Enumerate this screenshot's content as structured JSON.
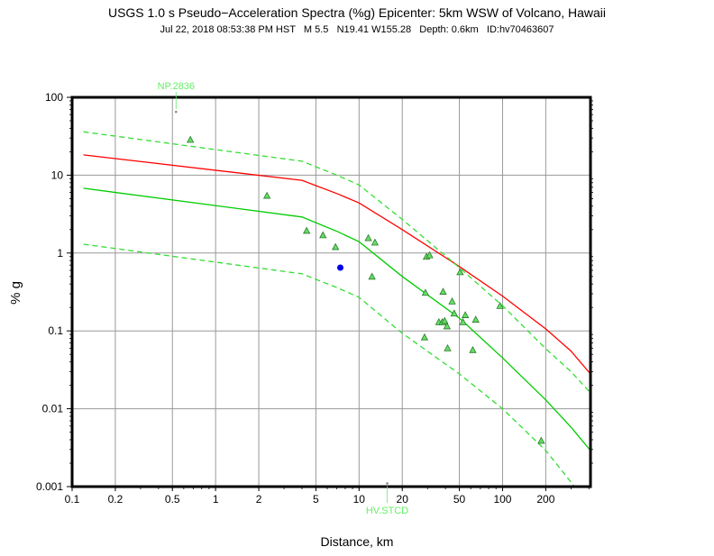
{
  "chart_data": {
    "type": "scatter",
    "title": "USGS 1.0 s Pseudo−Acceleration Spectra (%g) Epicenter: 5km WSW of Volcano, Hawaii",
    "subtitle": "Jul 22, 2018 08:53:38 PM HST   M 5.5   N19.41 W155.28   Depth: 0.6km   ID:hv70463607",
    "xlabel": "Distance, km",
    "ylabel": "% g",
    "xscale": "log",
    "yscale": "log",
    "xlim": [
      0.1,
      410
    ],
    "ylim": [
      0.001,
      100
    ],
    "grid": true,
    "x_ticks": [
      {
        "value": 0.1,
        "label": "0.1"
      },
      {
        "value": 0.2,
        "label": "0.2"
      },
      {
        "value": 0.5,
        "label": "0.5"
      },
      {
        "value": 1,
        "label": "1"
      },
      {
        "value": 2,
        "label": "2"
      },
      {
        "value": 5,
        "label": "5"
      },
      {
        "value": 10,
        "label": "10"
      },
      {
        "value": 20,
        "label": "20"
      },
      {
        "value": 50,
        "label": "50"
      },
      {
        "value": 100,
        "label": "100"
      },
      {
        "value": 200,
        "label": "200"
      }
    ],
    "y_ticks": [
      {
        "value": 100,
        "label": "100"
      },
      {
        "value": 10,
        "label": "10"
      },
      {
        "value": 1,
        "label": "1"
      },
      {
        "value": 0.1,
        "label": "0.1"
      },
      {
        "value": 0.01,
        "label": "0.01"
      },
      {
        "value": 0.001,
        "label": "0.001"
      }
    ],
    "curves": [
      {
        "name": "red-median",
        "color": "#ff0000",
        "dashed": false,
        "x": [
          0.12,
          4,
          7,
          10,
          20,
          50,
          100,
          200,
          300,
          410
        ],
        "y": [
          18.2,
          8.6,
          5.8,
          4.4,
          2.0,
          0.67,
          0.28,
          0.106,
          0.055,
          0.028
        ]
      },
      {
        "name": "green-median",
        "color": "#00cc00",
        "dashed": false,
        "x": [
          0.12,
          4,
          7,
          10,
          20,
          50,
          100,
          200,
          300,
          410
        ],
        "y": [
          6.8,
          2.9,
          1.9,
          1.4,
          0.5,
          0.146,
          0.045,
          0.013,
          0.0058,
          0.0029
        ]
      },
      {
        "name": "green-upper",
        "color": "#33dd33",
        "dashed": true,
        "x": [
          0.12,
          4,
          7,
          10,
          20,
          50,
          100,
          200,
          300,
          410
        ],
        "y": [
          36,
          15.1,
          10,
          7.5,
          2.7,
          0.65,
          0.21,
          0.059,
          0.03,
          0.016
        ]
      },
      {
        "name": "green-lower",
        "color": "#33dd33",
        "dashed": true,
        "x": [
          0.12,
          4,
          7,
          10,
          20,
          50,
          100,
          200,
          318
        ],
        "y": [
          1.3,
          0.54,
          0.36,
          0.27,
          0.093,
          0.028,
          0.01,
          0.0029,
          0.001
        ]
      }
    ],
    "stations": {
      "name": "observed stations",
      "color": "#66dd66",
      "marker": "triangle",
      "x": [
        0.667,
        2.28,
        4.31,
        5.6,
        6.85,
        11.6,
        12.9,
        12.3,
        29.5,
        31,
        50.6,
        29,
        38.5,
        44.5,
        46,
        36,
        38,
        39.5,
        41,
        53,
        55,
        65,
        28.6,
        41.4,
        62,
        96,
        186
      ],
      "y": [
        28.6,
        5.47,
        1.94,
        1.7,
        1.2,
        1.56,
        1.37,
        0.5,
        0.9,
        0.94,
        0.57,
        0.31,
        0.32,
        0.24,
        0.168,
        0.13,
        0.13,
        0.135,
        0.115,
        0.13,
        0.16,
        0.14,
        0.083,
        0.06,
        0.057,
        0.21,
        0.0039
      ]
    },
    "epicenter_point": {
      "x": 7.4,
      "y": 0.65,
      "color": "#0000ee"
    },
    "labeled_stations": [
      {
        "label": "NP.2836",
        "x": 0.53,
        "y": 65,
        "position": "top"
      },
      {
        "label": "HV.STCD",
        "x": 15.7,
        "y": 0.0011,
        "position": "bottom"
      }
    ]
  }
}
